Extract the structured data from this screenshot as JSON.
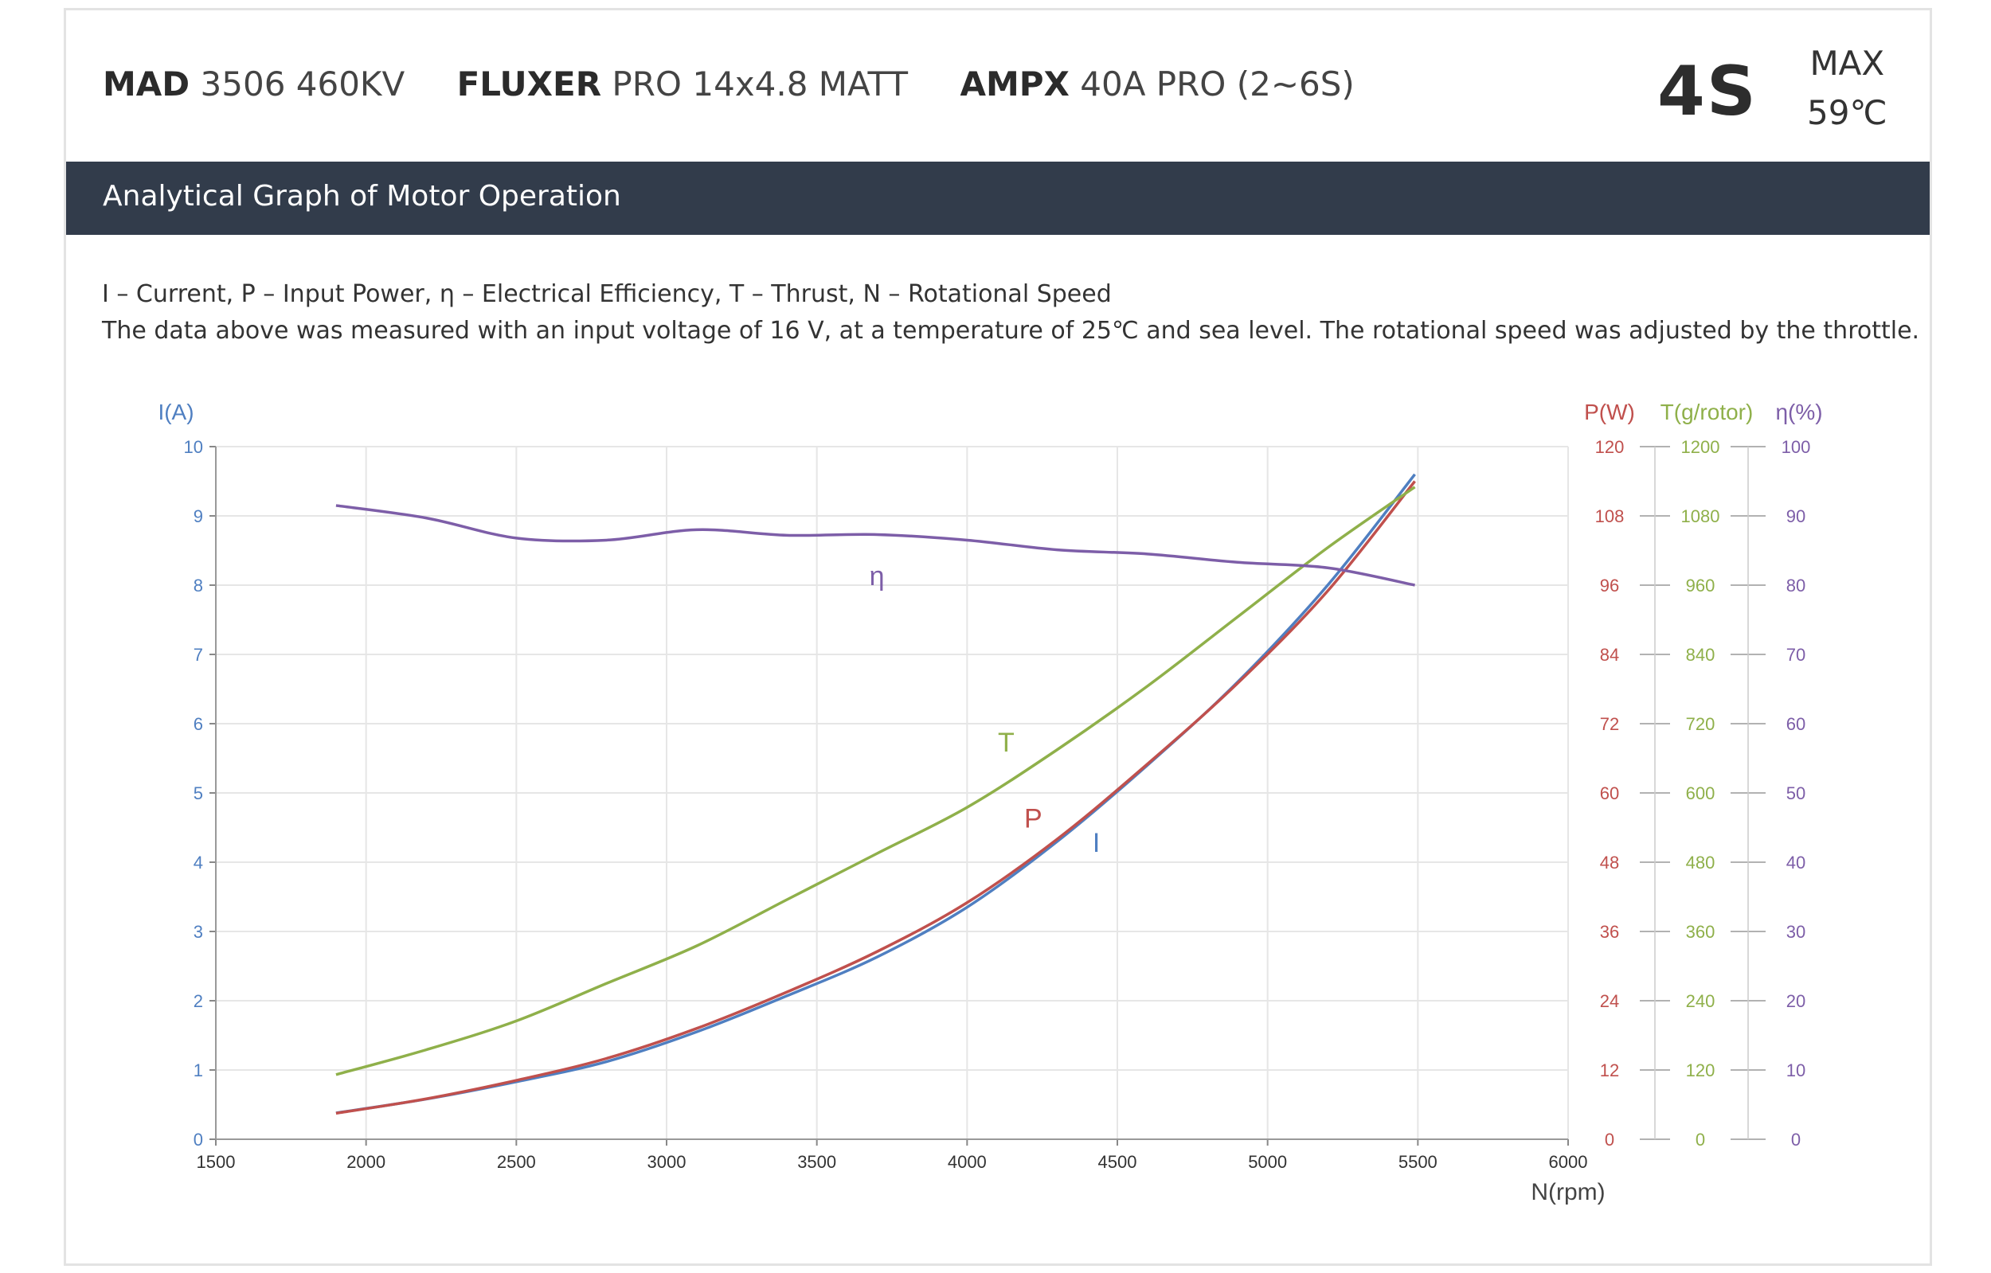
{
  "header": {
    "specs": [
      {
        "brand": "MAD",
        "model": "3506 460KV"
      },
      {
        "brand": "FLUXER",
        "model": "PRO 14x4.8 MATT"
      },
      {
        "brand": "AMPX",
        "model": "40A PRO (2~6S)"
      }
    ],
    "cells": "4S",
    "max_label": "MAX",
    "max_temp": "59℃"
  },
  "banner": {
    "title": "Analytical Graph of Motor Operation"
  },
  "description": {
    "legend_line": "I – Current, P – Input Power, η – Electrical Efficiency, T – Thrust,   N – Rotational Speed",
    "note_line": "The data above was measured with an input voltage of 16 V, at a temperature of 25℃ and sea level. The rotational speed was adjusted by the throttle."
  },
  "colors": {
    "current": "#4f7fc1",
    "power": "#c0504d",
    "thrust": "#8fb04a",
    "efficiency": "#7d5ea8",
    "grid": "#e6e6e6",
    "banner": "#323c4b"
  },
  "chart_data": {
    "type": "line",
    "xlabel": "N(rpm)",
    "xlim": [
      1500,
      6000
    ],
    "x_ticks": [
      "1500",
      "2000",
      "2500",
      "3000",
      "3500",
      "4000",
      "4500",
      "5000",
      "5500",
      "6000"
    ],
    "axes": [
      {
        "id": "I",
        "label": "I(A)",
        "side": "left",
        "range": [
          0,
          10
        ],
        "ticks": [
          "0",
          "1",
          "2",
          "3",
          "4",
          "5",
          "6",
          "7",
          "8",
          "9",
          "10"
        ],
        "color": "#4f7fc1"
      },
      {
        "id": "P",
        "label": "P(W)",
        "side": "right",
        "range": [
          0,
          120
        ],
        "ticks": [
          "0",
          "12",
          "24",
          "36",
          "48",
          "60",
          "72",
          "84",
          "96",
          "108",
          "120"
        ],
        "color": "#c0504d"
      },
      {
        "id": "T",
        "label": "T(g/rotor)",
        "side": "right",
        "range": [
          0,
          1200
        ],
        "ticks": [
          "0",
          "120",
          "240",
          "360",
          "480",
          "600",
          "720",
          "840",
          "960",
          "1080",
          "1200"
        ],
        "color": "#8fb04a"
      },
      {
        "id": "eta",
        "label": "η(%)",
        "side": "right",
        "range": [
          0,
          100
        ],
        "ticks": [
          "0",
          "10",
          "20",
          "30",
          "40",
          "50",
          "60",
          "70",
          "80",
          "90",
          "100"
        ],
        "color": "#7d5ea8"
      }
    ],
    "grid": true,
    "series": [
      {
        "name": "I",
        "axis": "I",
        "color": "#4f7fc1",
        "x": [
          1900,
          2200,
          2500,
          2800,
          3100,
          3400,
          3700,
          4000,
          4300,
          4600,
          4900,
          5200,
          5490
        ],
        "y": [
          0.38,
          0.58,
          0.83,
          1.12,
          1.55,
          2.07,
          2.63,
          3.35,
          4.3,
          5.4,
          6.6,
          8.0,
          9.6
        ]
      },
      {
        "name": "P",
        "axis": "P",
        "color": "#c0504d",
        "x": [
          1900,
          2200,
          2500,
          2800,
          3100,
          3400,
          3700,
          4000,
          4300,
          4600,
          4900,
          5200,
          5490
        ],
        "y": [
          4.5,
          7.0,
          10.2,
          14.0,
          19.2,
          25.5,
          32.5,
          41.0,
          52.0,
          65.0,
          79.0,
          95.0,
          114.0
        ]
      },
      {
        "name": "T",
        "axis": "T",
        "color": "#8fb04a",
        "x": [
          1900,
          2200,
          2500,
          2800,
          3100,
          3400,
          3700,
          4000,
          4300,
          4600,
          4900,
          5200,
          5490
        ],
        "y": [
          112,
          155,
          205,
          270,
          335,
          415,
          495,
          575,
          675,
          785,
          905,
          1025,
          1130
        ]
      },
      {
        "name": "η",
        "axis": "eta",
        "color": "#7d5ea8",
        "x": [
          1900,
          2200,
          2500,
          2800,
          3100,
          3400,
          3700,
          4000,
          4300,
          4600,
          4900,
          5200,
          5490
        ],
        "y": [
          91.5,
          89.7,
          86.8,
          86.5,
          88.0,
          87.2,
          87.3,
          86.5,
          85.1,
          84.5,
          83.3,
          82.5,
          80.0
        ]
      }
    ],
    "annotations": [
      {
        "text": "η",
        "series": "η",
        "x": 3700,
        "y": 8.0,
        "axis": "I"
      },
      {
        "text": "T",
        "series": "T",
        "x": 4130,
        "y": 5.6,
        "axis": "I"
      },
      {
        "text": "P",
        "series": "P",
        "x": 4220,
        "y": 4.5,
        "axis": "I"
      },
      {
        "text": "I",
        "series": "I",
        "x": 4430,
        "y": 4.15,
        "axis": "I"
      }
    ]
  }
}
